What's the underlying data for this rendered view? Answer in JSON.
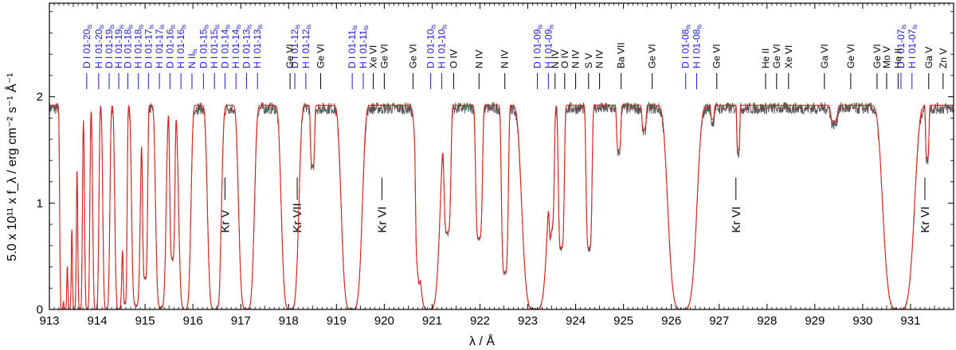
{
  "colors": {
    "observed": "#555555",
    "model": "#e0201f",
    "ism_label": "#1a1acc",
    "ion_label": "#000000"
  },
  "chart_data": {
    "type": "line",
    "xlabel": "λ / Å",
    "ylabel": "5.0 x 10¹¹ x f_λ / erg cm⁻² s⁻¹ Å⁻¹",
    "xlim": [
      913.0,
      931.9
    ],
    "ylim": [
      0,
      2.88
    ],
    "x_ticks": [
      "913",
      "914",
      "915",
      "916",
      "917",
      "918",
      "919",
      "920",
      "921",
      "922",
      "923",
      "924",
      "925",
      "926",
      "927",
      "928",
      "929",
      "930",
      "931"
    ],
    "y_ticks": [
      "0",
      "1",
      "2"
    ],
    "grid": false,
    "continuum": 1.92,
    "series": [],
    "absorption_features": [
      {
        "center": 913.26,
        "depth": 1.0,
        "width": 0.05
      },
      {
        "center": 913.33,
        "depth": 1.0,
        "width": 0.05
      },
      {
        "center": 913.42,
        "depth": 1.0,
        "width": 0.05
      },
      {
        "center": 913.52,
        "depth": 1.0,
        "width": 0.05
      },
      {
        "center": 913.64,
        "depth": 1.0,
        "width": 0.055
      },
      {
        "center": 913.79,
        "depth": 1.0,
        "width": 0.06
      },
      {
        "center": 913.97,
        "depth": 1.0,
        "width": 0.07
      },
      {
        "center": 914.19,
        "depth": 1.0,
        "width": 0.08
      },
      {
        "center": 914.45,
        "depth": 1.0,
        "width": 0.09
      },
      {
        "center": 914.58,
        "depth": 0.97,
        "width": 0.05
      },
      {
        "center": 914.81,
        "depth": 0.98,
        "width": 0.1
      },
      {
        "center": 915.0,
        "depth": 0.85,
        "width": 0.06
      },
      {
        "center": 915.33,
        "depth": 0.99,
        "width": 0.12
      },
      {
        "center": 915.57,
        "depth": 0.75,
        "width": 0.06
      },
      {
        "center": 915.83,
        "depth": 1.0,
        "width": 0.14
      },
      {
        "center": 916.45,
        "depth": 1.0,
        "width": 0.16
      },
      {
        "center": 916.5,
        "depth": 0.65,
        "width": 0.06
      },
      {
        "center": 917.12,
        "depth": 1.0,
        "width": 0.18
      },
      {
        "center": 918.03,
        "depth": 1.0,
        "width": 0.2
      },
      {
        "center": 918.5,
        "depth": 0.3,
        "width": 0.05
      },
      {
        "center": 919.32,
        "depth": 1.0,
        "width": 0.24
      },
      {
        "center": 920.7,
        "depth": 0.6,
        "width": 0.05
      },
      {
        "center": 920.93,
        "depth": 1.0,
        "width": 0.26
      },
      {
        "center": 921.32,
        "depth": 0.62,
        "width": 0.08
      },
      {
        "center": 921.98,
        "depth": 0.65,
        "width": 0.08
      },
      {
        "center": 922.52,
        "depth": 0.82,
        "width": 0.08
      },
      {
        "center": 923.15,
        "depth": 1.0,
        "width": 0.3
      },
      {
        "center": 923.5,
        "depth": 0.55,
        "width": 0.06
      },
      {
        "center": 923.7,
        "depth": 0.7,
        "width": 0.07
      },
      {
        "center": 924.28,
        "depth": 0.7,
        "width": 0.07
      },
      {
        "center": 924.9,
        "depth": 0.22,
        "width": 0.05
      },
      {
        "center": 925.43,
        "depth": 0.12,
        "width": 0.05
      },
      {
        "center": 926.23,
        "depth": 1.0,
        "width": 0.33
      },
      {
        "center": 926.86,
        "depth": 0.07,
        "width": 0.04
      },
      {
        "center": 927.4,
        "depth": 0.22,
        "width": 0.035
      },
      {
        "center": 929.4,
        "depth": 0.08,
        "width": 0.08
      },
      {
        "center": 930.75,
        "depth": 1.0,
        "width": 0.36
      },
      {
        "center": 931.35,
        "depth": 0.26,
        "width": 0.04
      }
    ],
    "ism_labels": [
      {
        "w": 913.78,
        "text": "D I 01-20",
        "sub": "ls"
      },
      {
        "w": 914.03,
        "text": "H I 01-20",
        "sub": "ls"
      },
      {
        "w": 914.25,
        "text": "D I 01-19",
        "sub": "ls"
      },
      {
        "w": 914.45,
        "text": "H I 01-19",
        "sub": "ls"
      },
      {
        "w": 914.64,
        "text": "D I 01-18",
        "sub": "ls"
      },
      {
        "w": 914.86,
        "text": "H I 01-18",
        "sub": "ls"
      },
      {
        "w": 915.07,
        "text": "D I 01-17",
        "sub": "ls"
      },
      {
        "w": 915.3,
        "text": "H I 01-17",
        "sub": "ls"
      },
      {
        "w": 915.52,
        "text": "D I 01-16",
        "sub": "ls"
      },
      {
        "w": 915.75,
        "text": "H I 01-16",
        "sub": "ls"
      },
      {
        "w": 915.98,
        "text": "N II",
        "sub": "ls"
      },
      {
        "w": 916.22,
        "text": "D I 01-15",
        "sub": "ls"
      },
      {
        "w": 916.45,
        "text": "H I 01-15",
        "sub": "ls"
      },
      {
        "w": 916.67,
        "text": "D I 01-14",
        "sub": "ls"
      },
      {
        "w": 916.9,
        "text": "H I 01-14",
        "sub": "ls"
      },
      {
        "w": 917.12,
        "text": "D I 01-13",
        "sub": "ls"
      },
      {
        "w": 917.35,
        "text": "H I 01-13",
        "sub": "ls"
      },
      {
        "w": 918.13,
        "text": "D I 01-12",
        "sub": "ls"
      },
      {
        "w": 918.36,
        "text": "H I 01-12",
        "sub": "ls"
      },
      {
        "w": 919.33,
        "text": "D I 01-11",
        "sub": "ls"
      },
      {
        "w": 919.56,
        "text": "H I 01-11",
        "sub": "ls"
      },
      {
        "w": 920.97,
        "text": "D I 01-10",
        "sub": "ls"
      },
      {
        "w": 921.2,
        "text": "H I 01-10",
        "sub": "ls"
      },
      {
        "w": 923.2,
        "text": "D I 01-09",
        "sub": "ls"
      },
      {
        "w": 923.43,
        "text": "H I 01-09",
        "sub": "ls"
      },
      {
        "w": 926.3,
        "text": "D I 01-08",
        "sub": "ls"
      },
      {
        "w": 926.53,
        "text": "H I 01-08",
        "sub": "ls"
      },
      {
        "w": 930.8,
        "text": "D I 01-07",
        "sub": "ls"
      },
      {
        "w": 931.03,
        "text": "H I 01-07",
        "sub": "ls"
      }
    ],
    "photo_labels": [
      {
        "w": 918.03,
        "text": "Ge VI"
      },
      {
        "w": 918.67,
        "text": "Ge VI"
      },
      {
        "w": 919.77,
        "text": "Xe VI"
      },
      {
        "w": 920.0,
        "text": "Ge VI"
      },
      {
        "w": 920.6,
        "text": "Ge VI"
      },
      {
        "w": 921.45,
        "text": "O IV"
      },
      {
        "w": 921.98,
        "text": "N IV"
      },
      {
        "w": 922.52,
        "text": "N IV"
      },
      {
        "w": 923.57,
        "text": "N IV"
      },
      {
        "w": 923.77,
        "text": "O IV"
      },
      {
        "w": 924.0,
        "text": "N IV"
      },
      {
        "w": 924.27,
        "text": "S V"
      },
      {
        "w": 924.5,
        "text": "N IV"
      },
      {
        "w": 924.95,
        "text": "Ba VII"
      },
      {
        "w": 925.6,
        "text": "Ge VI"
      },
      {
        "w": 926.95,
        "text": "Ge VI"
      },
      {
        "w": 927.97,
        "text": "He II"
      },
      {
        "w": 928.2,
        "text": "Ge VI"
      },
      {
        "w": 928.45,
        "text": "Xe VI"
      },
      {
        "w": 929.2,
        "text": "Ga VI"
      },
      {
        "w": 929.75,
        "text": "Ge VI"
      },
      {
        "w": 930.3,
        "text": "Ge VI"
      },
      {
        "w": 930.5,
        "text": "Mo V"
      },
      {
        "w": 930.74,
        "text": "He II"
      },
      {
        "w": 931.38,
        "text": "Ga V"
      },
      {
        "w": 931.68,
        "text": "Zn V"
      }
    ],
    "kr_labels": [
      {
        "w": 916.67,
        "text": "Kr V"
      },
      {
        "w": 918.18,
        "text": "Kr VII"
      },
      {
        "w": 919.95,
        "text": "Kr VI"
      },
      {
        "w": 927.35,
        "text": "Kr VI"
      },
      {
        "w": 931.3,
        "text": "Kr VI"
      }
    ]
  }
}
